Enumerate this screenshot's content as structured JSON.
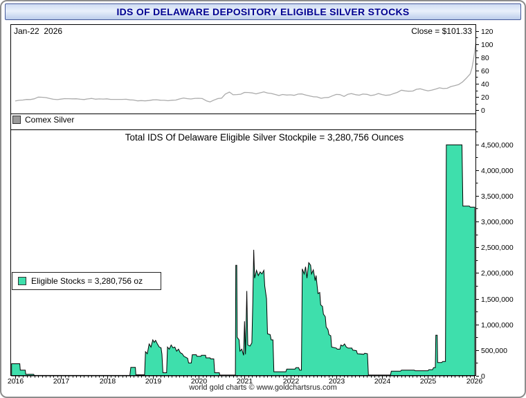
{
  "window": {
    "title": "IDS OF DELAWARE DEPOSITORY ELIGIBLE SILVER STOCKS",
    "footer": "world gold charts © www.goldchartsrus.com"
  },
  "top_chart": {
    "date_label": "Jan-22  2026",
    "close_label": "Close = $101.33",
    "legend": "Comex Silver"
  },
  "main_chart": {
    "title": "Total IDS Of Delaware Eligible Silver Stockpile = 3,280,756 Ounces",
    "legend": "Eligible Stocks = 3,280,756 oz"
  },
  "chart_data": [
    {
      "type": "line",
      "name": "Comex Silver price ($/oz)",
      "legend": "Comex Silver",
      "color": "#ababab",
      "swatch": "#9a9a9a",
      "xlim": [
        2015.91,
        2026.05
      ],
      "ylim": [
        -5,
        130
      ],
      "yticks": [
        0,
        20,
        40,
        60,
        80,
        100,
        120
      ],
      "ytick_labels": [
        "0",
        "20",
        "40",
        "60",
        "80",
        "100",
        "120"
      ],
      "last_value": 101.33,
      "points": [
        [
          2016.0,
          13.9
        ],
        [
          2016.08,
          15.0
        ],
        [
          2016.17,
          15.4
        ],
        [
          2016.25,
          16.2
        ],
        [
          2016.33,
          16.1
        ],
        [
          2016.42,
          17.3
        ],
        [
          2016.5,
          19.8
        ],
        [
          2016.58,
          19.6
        ],
        [
          2016.67,
          19.1
        ],
        [
          2016.75,
          17.7
        ],
        [
          2016.83,
          16.6
        ],
        [
          2016.92,
          16.0
        ],
        [
          2017.0,
          16.8
        ],
        [
          2017.08,
          17.5
        ],
        [
          2017.17,
          17.4
        ],
        [
          2017.25,
          17.2
        ],
        [
          2017.33,
          17.3
        ],
        [
          2017.42,
          16.6
        ],
        [
          2017.5,
          16.1
        ],
        [
          2017.58,
          17.1
        ],
        [
          2017.67,
          17.8
        ],
        [
          2017.75,
          16.7
        ],
        [
          2017.83,
          17.1
        ],
        [
          2017.92,
          16.9
        ],
        [
          2018.0,
          17.2
        ],
        [
          2018.08,
          16.4
        ],
        [
          2018.17,
          16.3
        ],
        [
          2018.25,
          16.4
        ],
        [
          2018.33,
          16.4
        ],
        [
          2018.42,
          16.6
        ],
        [
          2018.5,
          15.6
        ],
        [
          2018.58,
          15.4
        ],
        [
          2018.67,
          14.2
        ],
        [
          2018.75,
          14.6
        ],
        [
          2018.83,
          14.2
        ],
        [
          2018.92,
          14.7
        ],
        [
          2019.0,
          15.6
        ],
        [
          2019.08,
          15.8
        ],
        [
          2019.17,
          15.1
        ],
        [
          2019.25,
          15.0
        ],
        [
          2019.33,
          14.4
        ],
        [
          2019.42,
          15.1
        ],
        [
          2019.5,
          15.3
        ],
        [
          2019.58,
          17.0
        ],
        [
          2019.67,
          18.4
        ],
        [
          2019.75,
          17.5
        ],
        [
          2019.83,
          17.0
        ],
        [
          2019.92,
          17.9
        ],
        [
          2020.0,
          18.0
        ],
        [
          2020.08,
          17.6
        ],
        [
          2020.17,
          14.1
        ],
        [
          2020.25,
          12.6
        ],
        [
          2020.33,
          15.2
        ],
        [
          2020.42,
          17.6
        ],
        [
          2020.5,
          18.2
        ],
        [
          2020.58,
          24.4
        ],
        [
          2020.67,
          27.4
        ],
        [
          2020.75,
          23.4
        ],
        [
          2020.83,
          23.7
        ],
        [
          2020.92,
          24.2
        ],
        [
          2021.0,
          26.9
        ],
        [
          2021.08,
          26.8
        ],
        [
          2021.17,
          26.1
        ],
        [
          2021.25,
          24.7
        ],
        [
          2021.33,
          26.2
        ],
        [
          2021.42,
          27.8
        ],
        [
          2021.5,
          26.0
        ],
        [
          2021.58,
          25.4
        ],
        [
          2021.67,
          23.8
        ],
        [
          2021.75,
          22.2
        ],
        [
          2021.83,
          23.8
        ],
        [
          2021.92,
          22.9
        ],
        [
          2022.0,
          23.3
        ],
        [
          2022.08,
          22.5
        ],
        [
          2022.17,
          24.4
        ],
        [
          2022.25,
          24.6
        ],
        [
          2022.33,
          23.0
        ],
        [
          2022.42,
          21.6
        ],
        [
          2022.5,
          20.3
        ],
        [
          2022.58,
          20.1
        ],
        [
          2022.67,
          18.0
        ],
        [
          2022.75,
          19.1
        ],
        [
          2022.83,
          19.3
        ],
        [
          2022.92,
          21.9
        ],
        [
          2023.0,
          23.9
        ],
        [
          2023.08,
          23.6
        ],
        [
          2023.17,
          20.9
        ],
        [
          2023.25,
          24.0
        ],
        [
          2023.33,
          25.1
        ],
        [
          2023.42,
          23.5
        ],
        [
          2023.5,
          22.7
        ],
        [
          2023.58,
          24.4
        ],
        [
          2023.67,
          24.0
        ],
        [
          2023.75,
          22.2
        ],
        [
          2023.83,
          23.0
        ],
        [
          2023.92,
          25.2
        ],
        [
          2024.0,
          23.7
        ],
        [
          2024.08,
          22.5
        ],
        [
          2024.17,
          23.0
        ],
        [
          2024.25,
          25.1
        ],
        [
          2024.33,
          26.9
        ],
        [
          2024.42,
          30.3
        ],
        [
          2024.5,
          29.2
        ],
        [
          2024.58,
          28.7
        ],
        [
          2024.67,
          29.0
        ],
        [
          2024.75,
          31.6
        ],
        [
          2024.83,
          32.4
        ],
        [
          2024.92,
          30.6
        ],
        [
          2025.0,
          29.2
        ],
        [
          2025.08,
          30.4
        ],
        [
          2025.17,
          32.0
        ],
        [
          2025.25,
          33.8
        ],
        [
          2025.33,
          32.8
        ],
        [
          2025.42,
          33.2
        ],
        [
          2025.5,
          35.8
        ],
        [
          2025.58,
          37.2
        ],
        [
          2025.67,
          38.8
        ],
        [
          2025.75,
          42.5
        ],
        [
          2025.83,
          48.0
        ],
        [
          2025.92,
          55.0
        ],
        [
          2025.96,
          64.0
        ],
        [
          2026.0,
          80.0
        ],
        [
          2026.02,
          90.0
        ],
        [
          2026.04,
          101.33
        ]
      ]
    },
    {
      "type": "area",
      "name": "IDS of Delaware eligible silver stocks (oz)",
      "legend": "Eligible Stocks = 3,280,756 oz",
      "fill": "#3edfac",
      "stroke": "#000000",
      "xlim": [
        2015.91,
        2026.05
      ],
      "ylim": [
        0,
        4790000
      ],
      "yticks": [
        0,
        500000,
        1000000,
        1500000,
        2000000,
        2500000,
        3000000,
        3500000,
        4000000,
        4500000
      ],
      "ytick_labels": [
        "0",
        "500,000",
        "1,000,000",
        "1,500,000",
        "2,000,000",
        "2,500,000",
        "3,000,000",
        "3,500,000",
        "4,000,000",
        "4,500,000"
      ],
      "xticks": [
        2016,
        2017,
        2018,
        2019,
        2020,
        2021,
        2022,
        2023,
        2024,
        2025,
        2026
      ],
      "xtick_labels": [
        "2016",
        "2017",
        "2018",
        "2019",
        "2020",
        "2021",
        "2022",
        "2023",
        "2024",
        "2025",
        "2026"
      ],
      "last_value": 3280756,
      "points": [
        [
          2015.92,
          235000
        ],
        [
          2016.1,
          235000
        ],
        [
          2016.11,
          110000
        ],
        [
          2016.22,
          110000
        ],
        [
          2016.23,
          30000
        ],
        [
          2016.4,
          30000
        ],
        [
          2016.42,
          8000
        ],
        [
          2018.5,
          8000
        ],
        [
          2018.52,
          165000
        ],
        [
          2018.62,
          165000
        ],
        [
          2018.63,
          20000
        ],
        [
          2018.82,
          20000
        ],
        [
          2018.84,
          470000
        ],
        [
          2018.88,
          430000
        ],
        [
          2018.92,
          620000
        ],
        [
          2018.96,
          560000
        ],
        [
          2019.0,
          700000
        ],
        [
          2019.03,
          650000
        ],
        [
          2019.06,
          690000
        ],
        [
          2019.1,
          620000
        ],
        [
          2019.14,
          560000
        ],
        [
          2019.18,
          545000
        ],
        [
          2019.2,
          420000
        ],
        [
          2019.22,
          60000
        ],
        [
          2019.3,
          60000
        ],
        [
          2019.32,
          560000
        ],
        [
          2019.36,
          520000
        ],
        [
          2019.4,
          600000
        ],
        [
          2019.44,
          545000
        ],
        [
          2019.48,
          560000
        ],
        [
          2019.52,
          480000
        ],
        [
          2019.56,
          520000
        ],
        [
          2019.6,
          450000
        ],
        [
          2019.64,
          430000
        ],
        [
          2019.68,
          380000
        ],
        [
          2019.72,
          360000
        ],
        [
          2019.76,
          340000
        ],
        [
          2019.78,
          250000
        ],
        [
          2019.84,
          250000
        ],
        [
          2019.86,
          410000
        ],
        [
          2019.95,
          410000
        ],
        [
          2019.96,
          380000
        ],
        [
          2020.05,
          380000
        ],
        [
          2020.06,
          400000
        ],
        [
          2020.15,
          400000
        ],
        [
          2020.16,
          350000
        ],
        [
          2020.25,
          350000
        ],
        [
          2020.26,
          330000
        ],
        [
          2020.33,
          330000
        ],
        [
          2020.35,
          60000
        ],
        [
          2020.45,
          60000
        ],
        [
          2020.46,
          15000
        ],
        [
          2020.8,
          15000
        ],
        [
          2020.81,
          2150000
        ],
        [
          2020.83,
          2150000
        ],
        [
          2020.84,
          750000
        ],
        [
          2020.88,
          700000
        ],
        [
          2020.9,
          480000
        ],
        [
          2020.94,
          520000
        ],
        [
          2020.98,
          400000
        ],
        [
          2021.0,
          1060000
        ],
        [
          2021.02,
          420000
        ],
        [
          2021.05,
          1650000
        ],
        [
          2021.07,
          600000
        ],
        [
          2021.12,
          580000
        ],
        [
          2021.16,
          640000
        ],
        [
          2021.18,
          1450000
        ],
        [
          2021.2,
          2450000
        ],
        [
          2021.22,
          1900000
        ],
        [
          2021.26,
          2050000
        ],
        [
          2021.3,
          1950000
        ],
        [
          2021.34,
          2020000
        ],
        [
          2021.38,
          1980000
        ],
        [
          2021.42,
          2050000
        ],
        [
          2021.44,
          1750000
        ],
        [
          2021.48,
          1500000
        ],
        [
          2021.5,
          820000
        ],
        [
          2021.56,
          800000
        ],
        [
          2021.58,
          700000
        ],
        [
          2021.62,
          700000
        ],
        [
          2021.64,
          80000
        ],
        [
          2021.9,
          80000
        ],
        [
          2021.92,
          130000
        ],
        [
          2022.1,
          130000
        ],
        [
          2022.12,
          160000
        ],
        [
          2022.18,
          160000
        ],
        [
          2022.2,
          110000
        ],
        [
          2022.24,
          110000
        ],
        [
          2022.26,
          2080000
        ],
        [
          2022.3,
          1980000
        ],
        [
          2022.33,
          2120000
        ],
        [
          2022.36,
          1900000
        ],
        [
          2022.4,
          2200000
        ],
        [
          2022.44,
          2150000
        ],
        [
          2022.46,
          1980000
        ],
        [
          2022.5,
          2060000
        ],
        [
          2022.54,
          1850000
        ],
        [
          2022.56,
          1950000
        ],
        [
          2022.6,
          1600000
        ],
        [
          2022.64,
          1620000
        ],
        [
          2022.66,
          1380000
        ],
        [
          2022.7,
          1350000
        ],
        [
          2022.72,
          1200000
        ],
        [
          2022.76,
          1150000
        ],
        [
          2022.78,
          950000
        ],
        [
          2022.82,
          900000
        ],
        [
          2022.84,
          800000
        ],
        [
          2022.88,
          780000
        ],
        [
          2022.9,
          560000
        ],
        [
          2023.0,
          540000
        ],
        [
          2023.02,
          520000
        ],
        [
          2023.08,
          520000
        ],
        [
          2023.1,
          600000
        ],
        [
          2023.14,
          580000
        ],
        [
          2023.18,
          620000
        ],
        [
          2023.22,
          560000
        ],
        [
          2023.26,
          540000
        ],
        [
          2023.34,
          540000
        ],
        [
          2023.36,
          500000
        ],
        [
          2023.44,
          490000
        ],
        [
          2023.46,
          430000
        ],
        [
          2023.6,
          420000
        ],
        [
          2023.62,
          440000
        ],
        [
          2023.68,
          430000
        ],
        [
          2023.7,
          15000
        ],
        [
          2024.18,
          15000
        ],
        [
          2024.2,
          90000
        ],
        [
          2024.4,
          90000
        ],
        [
          2024.42,
          110000
        ],
        [
          2024.7,
          110000
        ],
        [
          2024.72,
          100000
        ],
        [
          2025.0,
          100000
        ],
        [
          2025.02,
          120000
        ],
        [
          2025.1,
          120000
        ],
        [
          2025.12,
          160000
        ],
        [
          2025.16,
          160000
        ],
        [
          2025.17,
          790000
        ],
        [
          2025.2,
          790000
        ],
        [
          2025.21,
          260000
        ],
        [
          2025.3,
          260000
        ],
        [
          2025.32,
          280000
        ],
        [
          2025.38,
          280000
        ],
        [
          2025.4,
          4490000
        ],
        [
          2025.74,
          4490000
        ],
        [
          2025.76,
          3300000
        ],
        [
          2025.9,
          3300000
        ],
        [
          2025.92,
          3280756
        ],
        [
          2026.02,
          3280756
        ]
      ]
    }
  ]
}
